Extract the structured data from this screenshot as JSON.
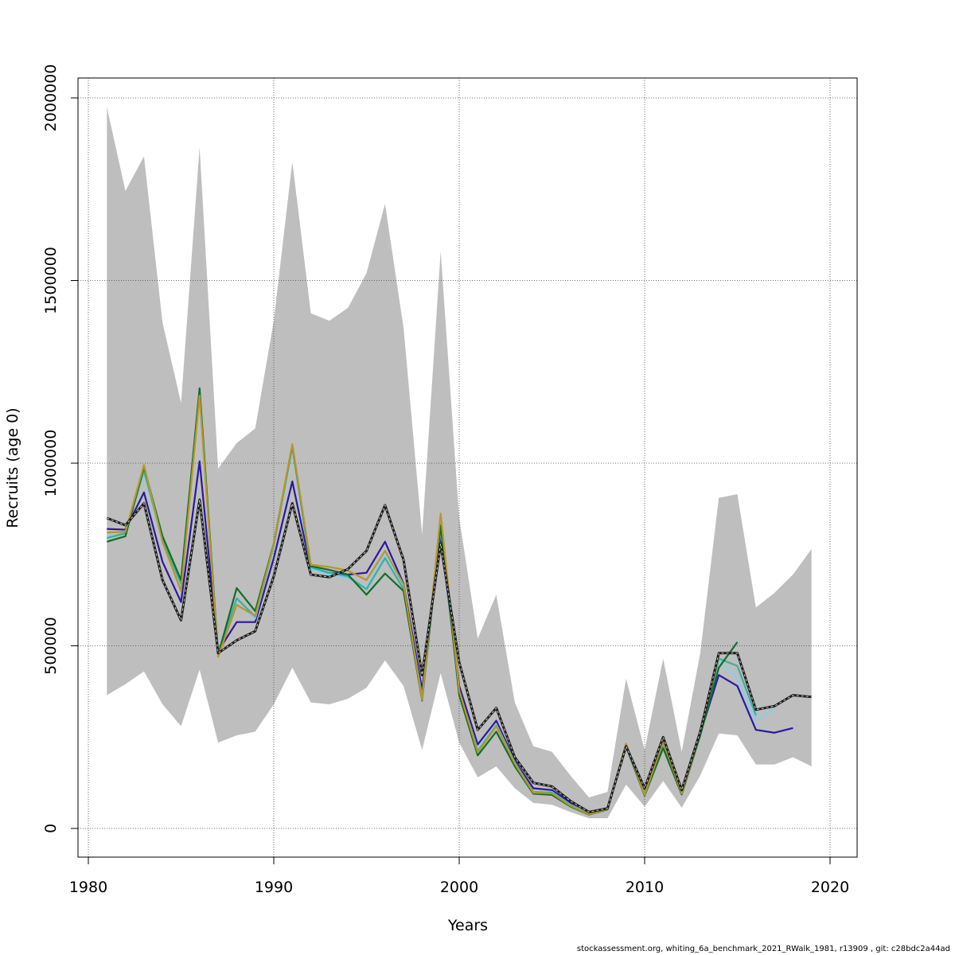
{
  "chart_data": {
    "type": "line",
    "title": "",
    "xlabel": "Years",
    "ylabel": "Recruits (age 0)",
    "xlim": [
      1980,
      2020
    ],
    "ylim": [
      0,
      2000000
    ],
    "x_ticks": [
      1980,
      1990,
      2000,
      2010,
      2020
    ],
    "y_ticks": [
      0,
      500000,
      1000000,
      1500000,
      2000000
    ],
    "x_tick_labels": [
      "1980",
      "1990",
      "2000",
      "2010",
      "2020"
    ],
    "y_tick_labels": [
      "0",
      "500000",
      "1000000",
      "1500000",
      "2000000"
    ],
    "grid": true,
    "grid_style": "dotted",
    "confidence_band": {
      "color": "#bebebe",
      "x": [
        1981,
        1982,
        1983,
        1984,
        1985,
        1986,
        1987,
        1988,
        1989,
        1990,
        1991,
        1992,
        1993,
        1994,
        1995,
        1996,
        1997,
        1998,
        1999,
        2000,
        2001,
        2002,
        2003,
        2004,
        2005,
        2006,
        2007,
        2008,
        2009,
        2010,
        2011,
        2012,
        2013,
        2014,
        2015,
        2016,
        2017,
        2018,
        2019
      ],
      "upper": [
        1975000,
        1745000,
        1840000,
        1385000,
        1165000,
        1865000,
        985000,
        1055000,
        1095000,
        1390000,
        1825000,
        1410000,
        1390000,
        1425000,
        1520000,
        1710000,
        1370000,
        805000,
        1580000,
        850000,
        520000,
        640000,
        345000,
        225000,
        210000,
        145000,
        85000,
        100000,
        410000,
        215000,
        465000,
        210000,
        480000,
        905000,
        915000,
        605000,
        645000,
        695000,
        765000
      ],
      "lower": [
        365000,
        395000,
        430000,
        340000,
        280000,
        435000,
        235000,
        255000,
        265000,
        340000,
        440000,
        345000,
        340000,
        355000,
        385000,
        460000,
        390000,
        215000,
        425000,
        235000,
        140000,
        170000,
        110000,
        70000,
        65000,
        45000,
        28000,
        28000,
        120000,
        60000,
        130000,
        57000,
        145000,
        260000,
        255000,
        175000,
        175000,
        195000,
        170000
      ]
    },
    "series": [
      {
        "color": "#2a1a9c",
        "dash": false,
        "x": [
          1981,
          1982,
          1983,
          1984,
          1985,
          1986,
          1987,
          1988,
          1989,
          1990,
          1991,
          1992,
          1993,
          1994,
          1995,
          1996,
          1997,
          1998,
          1999,
          2000,
          2001,
          2002,
          2003,
          2004,
          2005,
          2006,
          2007,
          2008,
          2009,
          2010,
          2011,
          2012,
          2013,
          2014,
          2015,
          2016,
          2017,
          2018
        ],
        "values": [
          820000,
          818000,
          920000,
          730000,
          620000,
          1005000,
          485000,
          565000,
          565000,
          740000,
          950000,
          710000,
          700000,
          695000,
          700000,
          785000,
          670000,
          380000,
          800000,
          390000,
          230000,
          295000,
          185000,
          110000,
          105000,
          70000,
          45000,
          55000,
          230000,
          95000,
          240000,
          100000,
          260000,
          420000,
          390000,
          270000,
          262000,
          275000
        ]
      },
      {
        "color": "#87ceeb",
        "dash": false,
        "x": [
          1981,
          1982,
          1983,
          1984,
          1985,
          1986,
          1987,
          1988,
          1989,
          1990,
          1991,
          1992,
          1993,
          1994,
          1995,
          1996,
          1997,
          1998,
          1999,
          2000,
          2001,
          2002,
          2003,
          2004,
          2005,
          2006,
          2007,
          2008,
          2009,
          2010,
          2011,
          2012,
          2013,
          2014,
          2015,
          2016,
          2017
        ],
        "values": [
          800000,
          810000,
          975000,
          780000,
          660000,
          1180000,
          480000,
          615000,
          575000,
          770000,
          1040000,
          710000,
          695000,
          685000,
          660000,
          750000,
          660000,
          360000,
          820000,
          375000,
          215000,
          285000,
          180000,
          100000,
          100000,
          65000,
          42000,
          55000,
          225000,
          95000,
          230000,
          100000,
          255000,
          460000,
          410000,
          295000,
          330000
        ]
      },
      {
        "color": "#3cb09a",
        "dash": false,
        "x": [
          1981,
          1982,
          1983,
          1984,
          1985,
          1986,
          1987,
          1988,
          1989,
          1990,
          1991,
          1992,
          1993,
          1994,
          1995,
          1996,
          1997,
          1998,
          1999,
          2000,
          2001,
          2002,
          2003,
          2004,
          2005,
          2006,
          2007,
          2008,
          2009,
          2010,
          2011,
          2012,
          2013,
          2014,
          2015,
          2016
        ],
        "values": [
          795000,
          808000,
          980000,
          790000,
          670000,
          1190000,
          478000,
          630000,
          580000,
          775000,
          1045000,
          715000,
          700000,
          690000,
          655000,
          740000,
          655000,
          358000,
          825000,
          372000,
          212000,
          282000,
          178000,
          100000,
          98000,
          64000,
          40000,
          54000,
          226000,
          93000,
          232000,
          98000,
          256000,
          465000,
          445000,
          310000
        ]
      },
      {
        "color": "#0f6e2a",
        "dash": false,
        "x": [
          1981,
          1982,
          1983,
          1984,
          1985,
          1986,
          1987,
          1988,
          1989,
          1990,
          1991,
          1992,
          1993,
          1994,
          1995,
          1996,
          1997,
          1998,
          1999,
          2000,
          2001,
          2002,
          2003,
          2004,
          2005,
          2006,
          2007,
          2008,
          2009,
          2010,
          2011,
          2012,
          2013,
          2014,
          2015
        ],
        "values": [
          785000,
          800000,
          990000,
          800000,
          680000,
          1205000,
          475000,
          658000,
          595000,
          780000,
          1050000,
          718000,
          708000,
          695000,
          640000,
          698000,
          650000,
          350000,
          830000,
          365000,
          200000,
          265000,
          170000,
          95000,
          92000,
          60000,
          38000,
          52000,
          225000,
          90000,
          220000,
          93000,
          255000,
          440000,
          510000
        ]
      },
      {
        "color": "#b8962a",
        "dash": false,
        "x": [
          1981,
          1982,
          1983,
          1984,
          1985,
          1986,
          1987,
          1988,
          1989,
          1990,
          1991,
          1992,
          1993,
          1994,
          1995,
          1996,
          1997,
          1998,
          1999,
          2000,
          2001,
          2002,
          2003,
          2004,
          2005,
          2006,
          2007,
          2008,
          2009,
          2010,
          2011,
          2012,
          2013,
          2014
        ],
        "values": [
          810000,
          812000,
          995000,
          785000,
          650000,
          1185000,
          470000,
          612000,
          582000,
          778000,
          1052000,
          722000,
          716000,
          706000,
          680000,
          760000,
          668000,
          352000,
          862000,
          378000,
          208000,
          280000,
          177000,
          98000,
          96000,
          62000,
          39000,
          53000,
          232000,
          92000,
          238000,
          96000,
          262000,
          472000
        ]
      },
      {
        "color": "#1a1a1a",
        "dash": true,
        "x": [
          1981,
          1982,
          1983,
          1984,
          1985,
          1986,
          1987,
          1988,
          1989,
          1990,
          1991,
          1992,
          1993,
          1994,
          1995,
          1996,
          1997,
          1998,
          1999,
          2000,
          2001,
          2002,
          2003,
          2004,
          2005,
          2006,
          2007,
          2008,
          2009,
          2010,
          2011,
          2012,
          2013,
          2014,
          2015,
          2016,
          2017,
          2018,
          2019
        ],
        "values": [
          850000,
          830000,
          890000,
          680000,
          570000,
          900000,
          480000,
          515000,
          540000,
          690000,
          890000,
          695000,
          688000,
          710000,
          760000,
          885000,
          735000,
          420000,
          780000,
          455000,
          270000,
          330000,
          195000,
          125000,
          115000,
          75000,
          45000,
          55000,
          225000,
          110000,
          250000,
          105000,
          265000,
          480000,
          480000,
          325000,
          335000,
          365000,
          360000
        ]
      }
    ]
  },
  "footer": {
    "credit": "stockassessment.org, whiting_6a_benchmark_2021_RWalk_1981, r13909 , git: c28bdc2a44ad"
  }
}
